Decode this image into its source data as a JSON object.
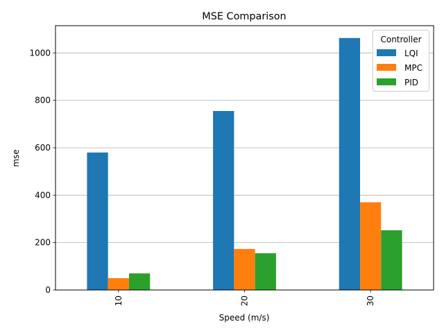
{
  "chart_data": {
    "type": "bar",
    "title": "MSE Comparison",
    "xlabel": "Speed (m/s)",
    "ylabel": "mse",
    "categories": [
      "10",
      "20",
      "30"
    ],
    "series": [
      {
        "name": "LQI",
        "values": [
          580,
          755,
          1063
        ],
        "color": "#1f77b4"
      },
      {
        "name": "MPC",
        "values": [
          50,
          173,
          370
        ],
        "color": "#ff7f0e"
      },
      {
        "name": "PID",
        "values": [
          70,
          155,
          252
        ],
        "color": "#2ca02c"
      }
    ],
    "ylim": [
      0,
      1115
    ],
    "yticks": [
      0,
      200,
      400,
      600,
      800,
      1000
    ],
    "grid": "y",
    "legend": {
      "title": "Controller",
      "position": "top-right"
    }
  }
}
